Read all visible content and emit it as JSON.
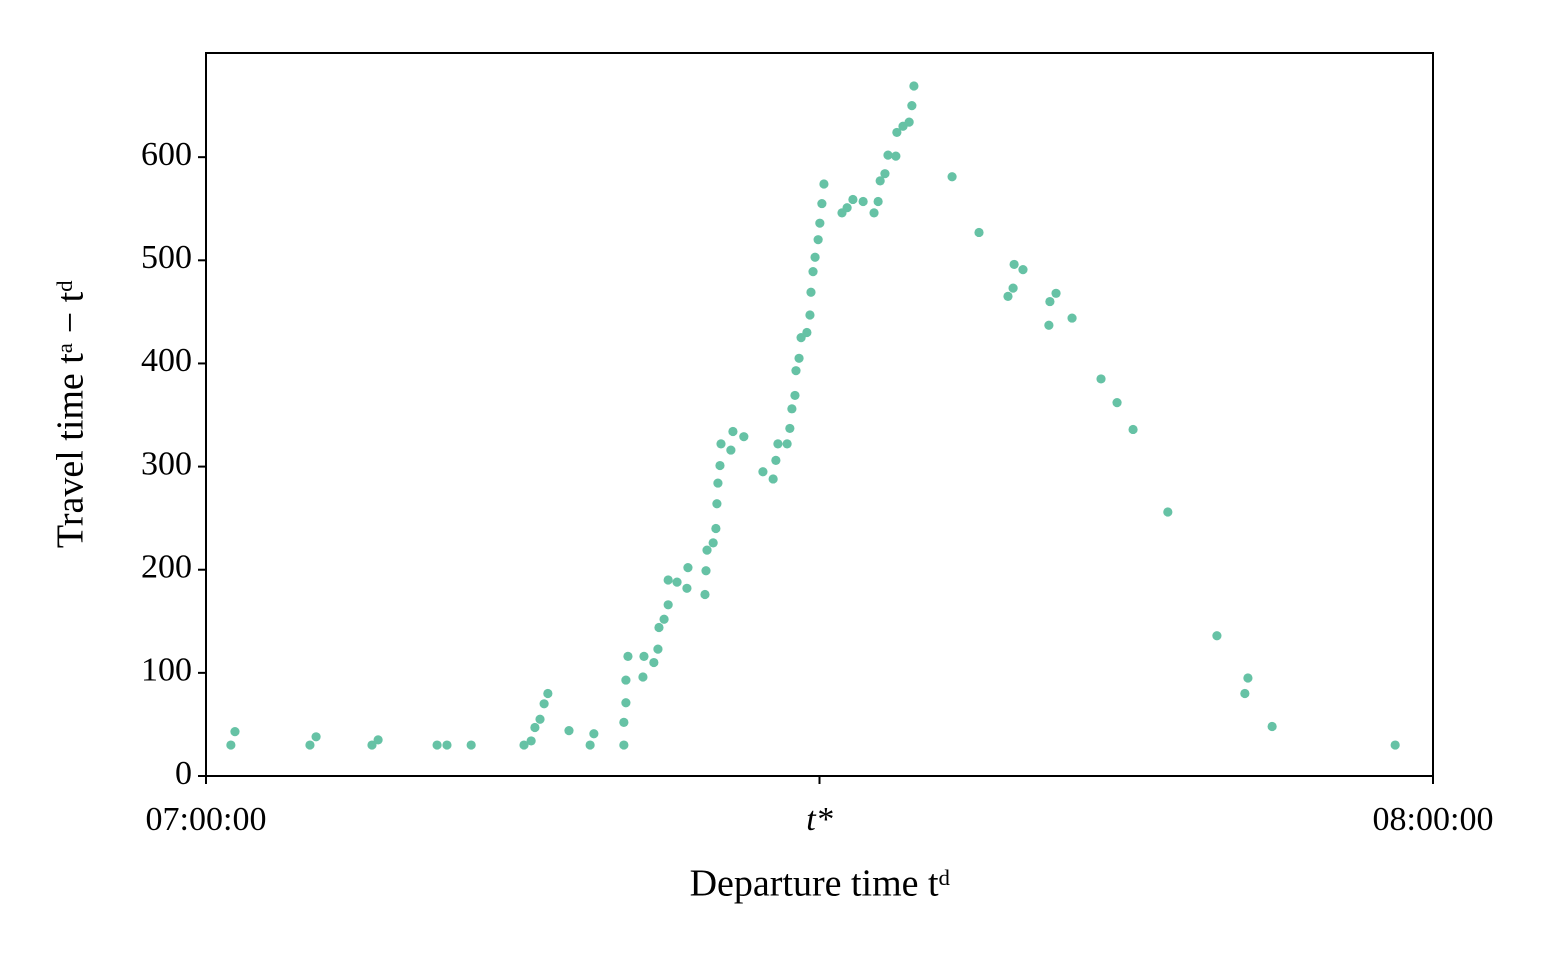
{
  "chart_data": {
    "type": "scatter",
    "xlabel": "Departure time tᵈ",
    "ylabel": "Travel time tᵃ − tᵈ",
    "xlim": [
      0,
      3600
    ],
    "ylim": [
      0,
      701
    ],
    "xticks": [
      {
        "value": 0,
        "label": "07:00:00"
      },
      {
        "value": 1800,
        "label": "t*"
      },
      {
        "value": 3600,
        "label": "08:00:00"
      }
    ],
    "yticks": [
      0,
      100,
      200,
      300,
      400,
      500,
      600
    ],
    "color": "#66c2a5",
    "x": [
      73,
      85,
      305,
      323,
      487,
      505,
      678,
      707,
      778,
      933,
      954,
      965,
      980,
      992,
      1003,
      1065,
      1127,
      1138,
      1226,
      1226,
      1232,
      1232,
      1238,
      1282,
      1285,
      1314,
      1326,
      1329,
      1344,
      1356,
      1356,
      1382,
      1411,
      1414,
      1464,
      1467,
      1470,
      1488,
      1496,
      1499,
      1502,
      1508,
      1511,
      1540,
      1546,
      1578,
      1634,
      1664,
      1672,
      1678,
      1705,
      1713,
      1719,
      1728,
      1731,
      1740,
      1746,
      1763,
      1772,
      1775,
      1781,
      1787,
      1796,
      1801,
      1807,
      1813,
      1866,
      1881,
      1898,
      1928,
      1960,
      1972,
      1978,
      1992,
      2001,
      2024,
      2027,
      2045,
      2063,
      2071,
      2077,
      2189,
      2268,
      2353,
      2368,
      2371,
      2397,
      2473,
      2476,
      2494,
      2541,
      2626,
      2673,
      2720,
      2822,
      2966,
      3048,
      3057,
      3128,
      3489
    ],
    "y": [
      30,
      43,
      30,
      38,
      30,
      35,
      30,
      30,
      30,
      30,
      34,
      47,
      55,
      70,
      80,
      44,
      30,
      41,
      30,
      52,
      71,
      93,
      116,
      96,
      116,
      110,
      123,
      144,
      152,
      166,
      190,
      188,
      182,
      202,
      176,
      199,
      219,
      226,
      240,
      264,
      284,
      301,
      322,
      316,
      334,
      329,
      295,
      288,
      306,
      322,
      322,
      337,
      356,
      369,
      393,
      405,
      425,
      430,
      447,
      469,
      489,
      503,
      520,
      536,
      555,
      574,
      546,
      551,
      559,
      557,
      546,
      557,
      577,
      584,
      602,
      601,
      624,
      630,
      634,
      650,
      669,
      581,
      527,
      465,
      473,
      496,
      491,
      437,
      460,
      468,
      444,
      385,
      362,
      336,
      256,
      136,
      80,
      95,
      48,
      30
    ]
  }
}
